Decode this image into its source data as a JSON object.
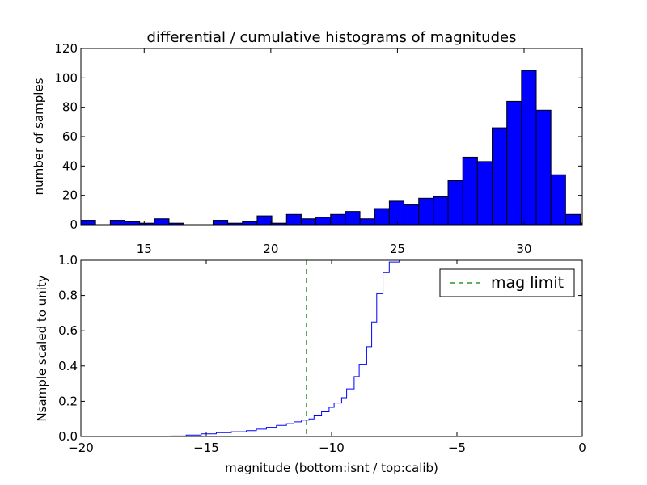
{
  "chart_data": [
    {
      "type": "bar",
      "title": "differential / cumulative histograms of magnitudes",
      "xlabel": "",
      "ylabel": "number of samples",
      "xlim": [
        12.5,
        32.3
      ],
      "ylim": [
        0,
        120
      ],
      "xticks": [
        15,
        20,
        25,
        30
      ],
      "yticks": [
        0,
        20,
        40,
        60,
        80,
        100,
        120
      ],
      "bar_color": "#0000ff",
      "bin_width": 0.58,
      "bins": [
        {
          "x": 12.5,
          "value": 3
        },
        {
          "x": 13.08,
          "value": 0
        },
        {
          "x": 13.66,
          "value": 3
        },
        {
          "x": 14.24,
          "value": 2
        },
        {
          "x": 14.82,
          "value": 1
        },
        {
          "x": 15.4,
          "value": 4
        },
        {
          "x": 15.98,
          "value": 1
        },
        {
          "x": 16.56,
          "value": 0
        },
        {
          "x": 17.14,
          "value": 0
        },
        {
          "x": 17.72,
          "value": 3
        },
        {
          "x": 18.3,
          "value": 1
        },
        {
          "x": 18.88,
          "value": 2
        },
        {
          "x": 19.46,
          "value": 6
        },
        {
          "x": 20.04,
          "value": 1
        },
        {
          "x": 20.62,
          "value": 7
        },
        {
          "x": 21.2,
          "value": 4
        },
        {
          "x": 21.78,
          "value": 5
        },
        {
          "x": 22.36,
          "value": 7
        },
        {
          "x": 22.94,
          "value": 9
        },
        {
          "x": 23.52,
          "value": 4
        },
        {
          "x": 24.1,
          "value": 11
        },
        {
          "x": 24.68,
          "value": 16
        },
        {
          "x": 25.26,
          "value": 14
        },
        {
          "x": 25.84,
          "value": 18
        },
        {
          "x": 26.42,
          "value": 19
        },
        {
          "x": 27.0,
          "value": 30
        },
        {
          "x": 27.58,
          "value": 46
        },
        {
          "x": 28.16,
          "value": 43
        },
        {
          "x": 28.74,
          "value": 66
        },
        {
          "x": 29.32,
          "value": 84
        },
        {
          "x": 29.9,
          "value": 105
        },
        {
          "x": 30.48,
          "value": 78
        },
        {
          "x": 31.06,
          "value": 34
        },
        {
          "x": 31.64,
          "value": 7
        },
        {
          "x": 32.22,
          "value": 1
        }
      ]
    },
    {
      "type": "line",
      "title": "",
      "xlabel": "magnitude (bottom:isnt / top:calib)",
      "ylabel": "Nsample scaled to unity",
      "xlim": [
        -20,
        0
      ],
      "ylim": [
        0,
        1
      ],
      "xticks": [
        -20,
        -15,
        -10,
        -5,
        0
      ],
      "xtick_labels": [
        "−20",
        "−15",
        "−10",
        "−5",
        "0"
      ],
      "yticks": [
        0.0,
        0.2,
        0.4,
        0.6,
        0.8,
        1.0
      ],
      "ytick_labels": [
        "0.0",
        "0.2",
        "0.4",
        "0.6",
        "0.8",
        "1.0"
      ],
      "series": [
        {
          "name": "",
          "color": "#0000ff",
          "style": "steps-post",
          "x": [
            -20,
            -16.4,
            -15.8,
            -15.2,
            -14.6,
            -14.0,
            -13.4,
            -13.0,
            -12.6,
            -12.2,
            -11.8,
            -11.5,
            -11.2,
            -10.9,
            -10.7,
            -10.4,
            -10.1,
            -9.9,
            -9.6,
            -9.4,
            -9.1,
            -8.9,
            -8.6,
            -8.4,
            -8.2,
            -7.95,
            -7.7,
            -7.3,
            -0.05
          ],
          "y": [
            0.0,
            0.003,
            0.008,
            0.015,
            0.022,
            0.027,
            0.033,
            0.042,
            0.052,
            0.063,
            0.073,
            0.083,
            0.093,
            0.1,
            0.117,
            0.14,
            0.165,
            0.19,
            0.22,
            0.27,
            0.34,
            0.41,
            0.51,
            0.65,
            0.81,
            0.93,
            0.99,
            1.0,
            1.0
          ]
        }
      ],
      "mag_limit": {
        "name": "mag limit",
        "x": -11.0,
        "color": "#008000",
        "style": "dashed"
      },
      "legend_location": "upper right"
    }
  ]
}
